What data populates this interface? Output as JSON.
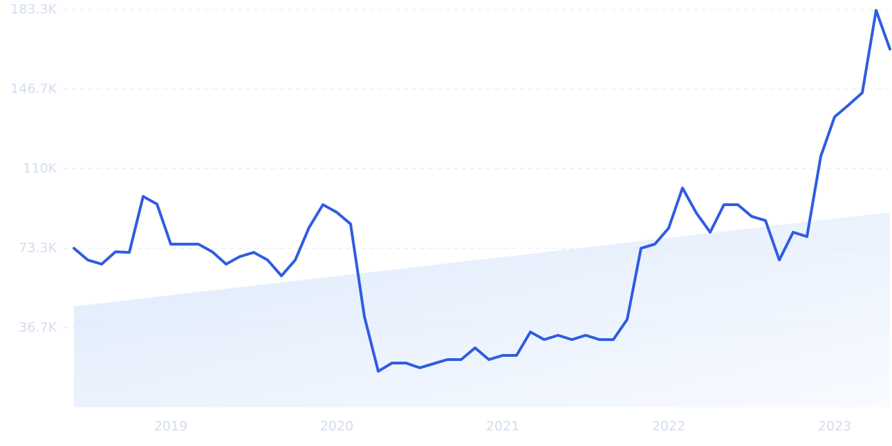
{
  "chart_data": {
    "type": "line",
    "categories": [
      null,
      null,
      null,
      null,
      null,
      null,
      null,
      "2019",
      null,
      null,
      null,
      null,
      null,
      null,
      null,
      null,
      null,
      null,
      null,
      "2020",
      null,
      null,
      null,
      null,
      null,
      null,
      null,
      null,
      null,
      null,
      null,
      "2021",
      null,
      null,
      null,
      null,
      null,
      null,
      null,
      null,
      null,
      null,
      null,
      "2022",
      null,
      null,
      null,
      null,
      null,
      null,
      null,
      null,
      null,
      null,
      null,
      "2023",
      null,
      null,
      null,
      null
    ],
    "series": [
      {
        "color": "#2f5ce0",
        "values": [
          73300,
          67900,
          66000,
          71700,
          71400,
          97200,
          93700,
          75200,
          75200,
          75200,
          71700,
          66000,
          69500,
          71400,
          67900,
          60600,
          67900,
          82900,
          93400,
          89900,
          84500,
          41800,
          16600,
          20400,
          20400,
          18200,
          20100,
          22000,
          22000,
          27400,
          22000,
          23900,
          23900,
          34700,
          31200,
          33200,
          31200,
          33200,
          31200,
          31200,
          40500,
          73300,
          75200,
          82600,
          101100,
          89600,
          80700,
          93400,
          93400,
          88000,
          86100,
          67900,
          80700,
          78700,
          115700,
          133900,
          139300,
          145000,
          183000,
          165100
        ]
      }
    ],
    "trend": {
      "values": [
        46500,
        89900
      ]
    },
    "ylim": [
      0,
      183300
    ],
    "yticks": [
      {
        "value": 36700,
        "label": "36.7K"
      },
      {
        "value": 73300,
        "label": "73.3K"
      },
      {
        "value": 110000,
        "label": "110K"
      },
      {
        "value": 146700,
        "label": "146.7K"
      },
      {
        "value": 183300,
        "label": "183.3K"
      }
    ],
    "grid": true
  }
}
